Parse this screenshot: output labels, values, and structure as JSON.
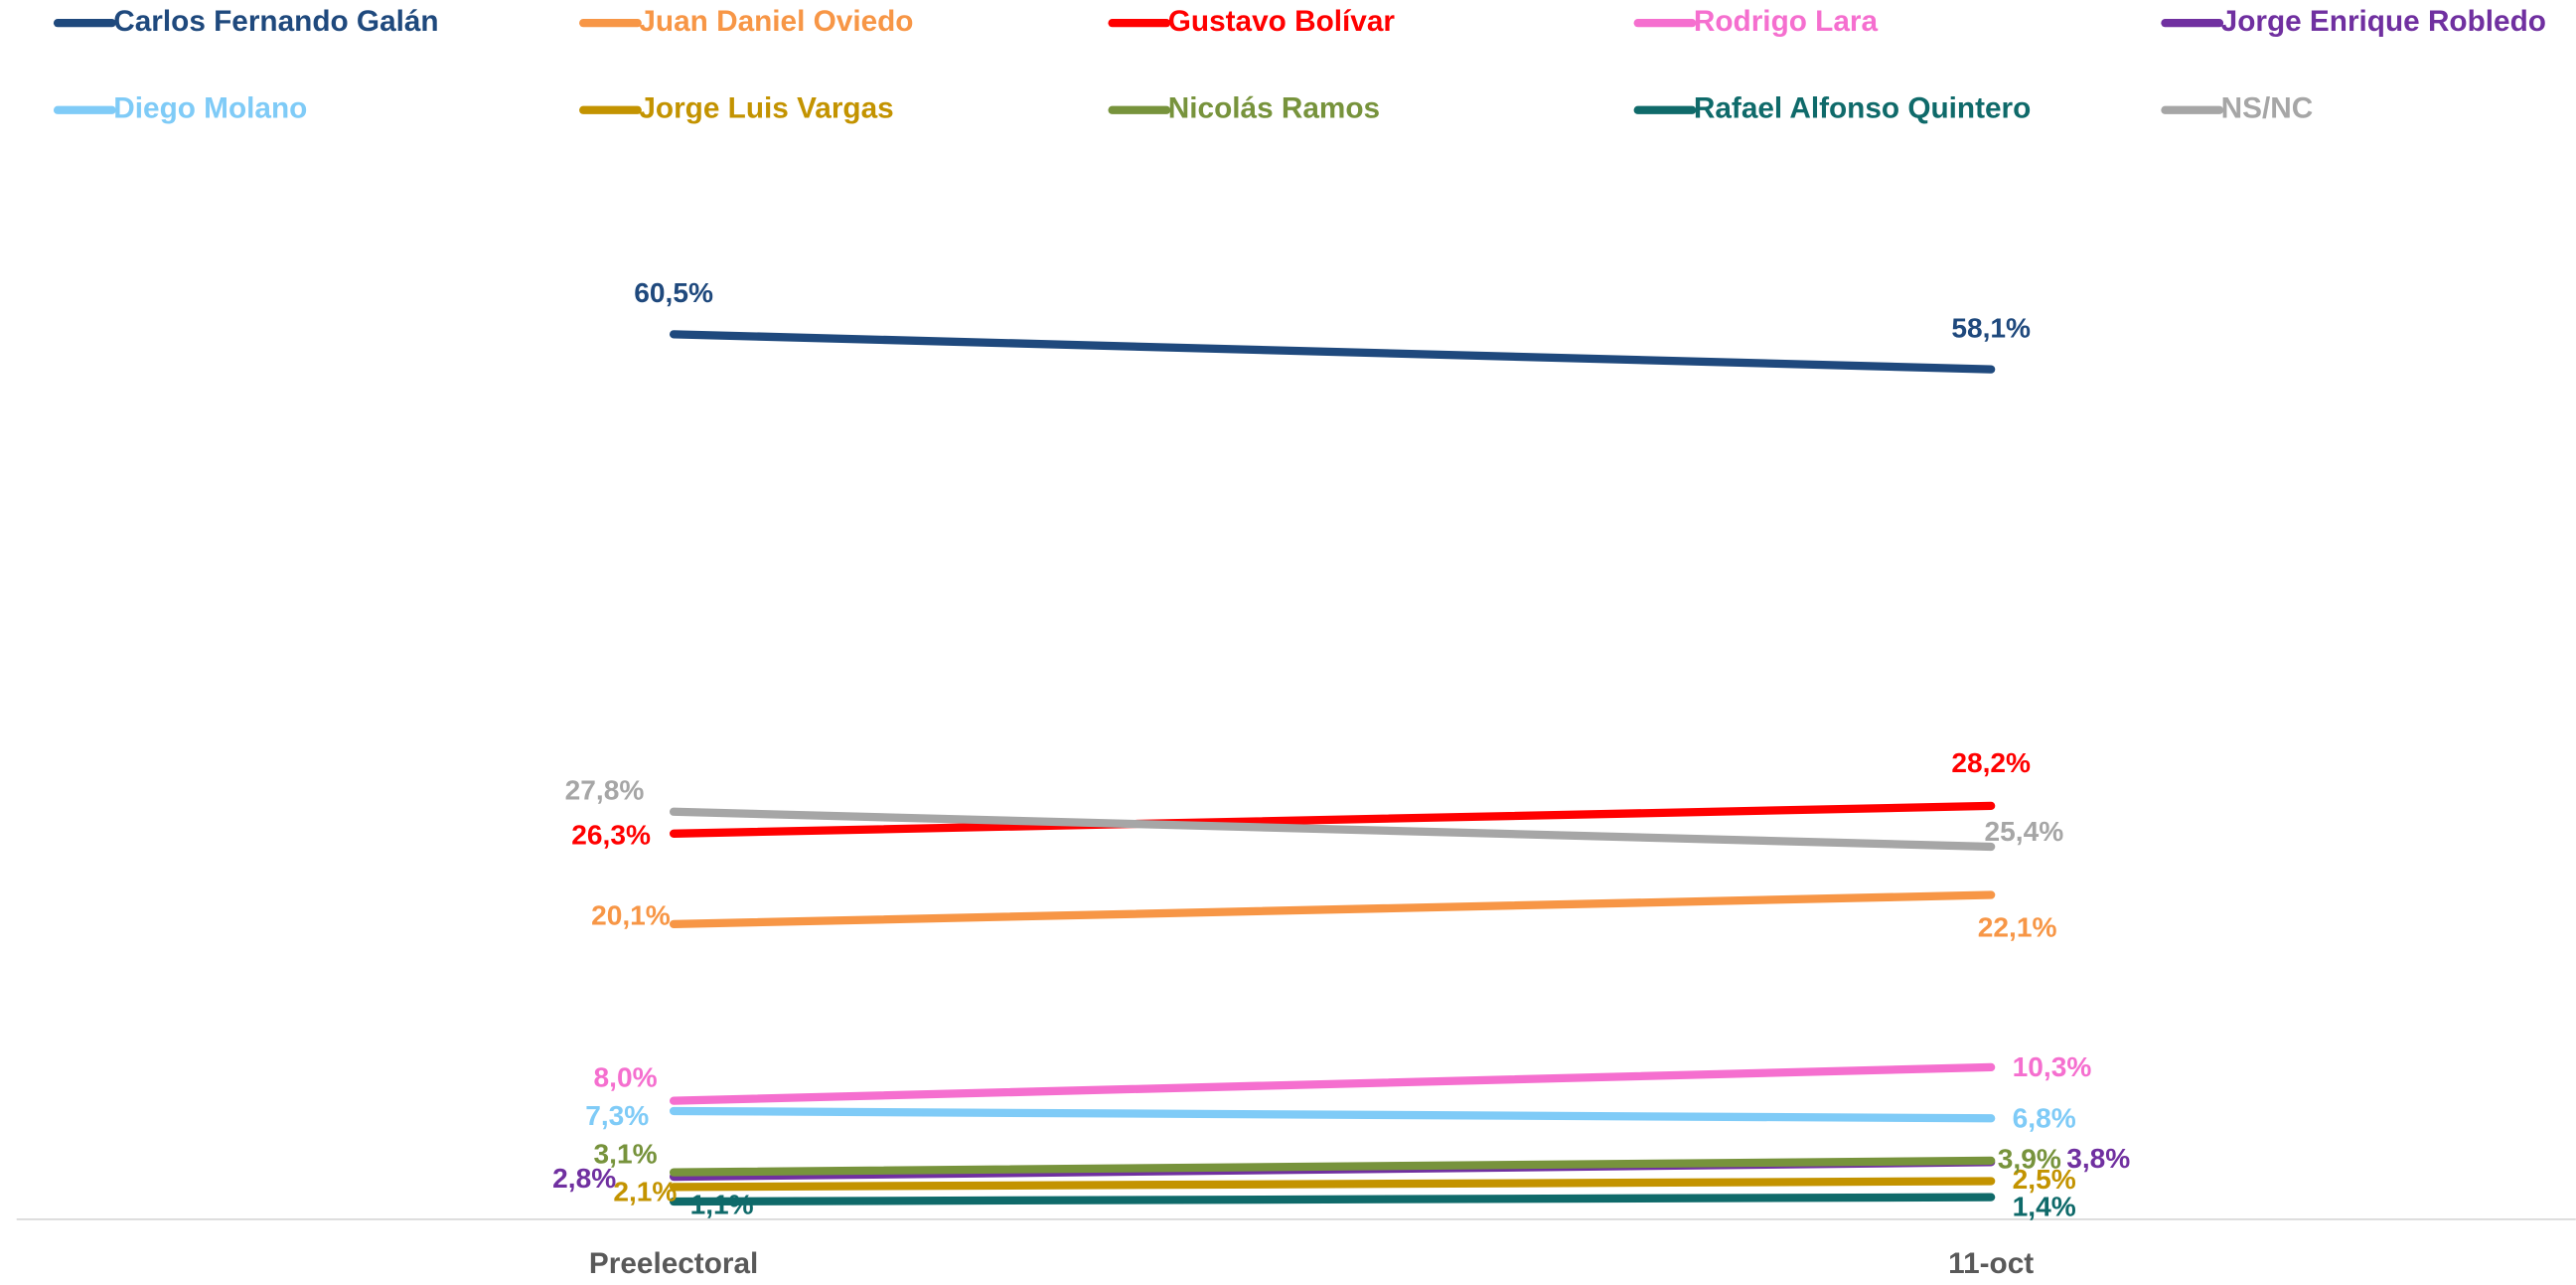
{
  "chart_data": {
    "type": "line",
    "categories": [
      "Preelectoral",
      "11-oct"
    ],
    "ylim": [
      0,
      70
    ],
    "series": [
      {
        "name": "Carlos Fernando Galán",
        "color": "#1f497d",
        "values": [
          60.5,
          58.1
        ],
        "value_labels": [
          "60,5%",
          "58,1%"
        ]
      },
      {
        "name": "Juan Daniel Oviedo",
        "color": "#f79646",
        "values": [
          20.1,
          22.1
        ],
        "value_labels": [
          "20,1%",
          "22,1%"
        ]
      },
      {
        "name": "Gustavo Bolívar",
        "color": "#ff0000",
        "values": [
          26.3,
          28.2
        ],
        "value_labels": [
          "26,3%",
          "28,2%"
        ]
      },
      {
        "name": "Rodrigo Lara",
        "color": "#f56fcf",
        "values": [
          8.0,
          10.3
        ],
        "value_labels": [
          "8,0%",
          "10,3%"
        ]
      },
      {
        "name": "Jorge Enrique Robledo",
        "color": "#7030a0",
        "values": [
          2.8,
          3.8
        ],
        "value_labels": [
          "2,8%",
          "3,8%"
        ]
      },
      {
        "name": "Diego Molano",
        "color": "#7fcbf7",
        "values": [
          7.3,
          6.8
        ],
        "value_labels": [
          "7,3%",
          "6,8%"
        ]
      },
      {
        "name": "Jorge Luis Vargas",
        "color": "#c39300",
        "values": [
          2.1,
          2.5
        ],
        "value_labels": [
          "2,1%",
          "2,5%"
        ]
      },
      {
        "name": "Nicolás Ramos",
        "color": "#77933c",
        "values": [
          3.1,
          3.9
        ],
        "value_labels": [
          "3,1%",
          "3,9%"
        ]
      },
      {
        "name": "Rafael Alfonso Quintero",
        "color": "#0f6a6a",
        "values": [
          1.1,
          1.4
        ],
        "value_labels": [
          "1,1%",
          "1,4%"
        ]
      },
      {
        "name": "NS/NC",
        "color": "#a6a6a6",
        "values": [
          27.8,
          25.4
        ],
        "value_labels": [
          "27,8%",
          "25,4%"
        ]
      }
    ]
  }
}
